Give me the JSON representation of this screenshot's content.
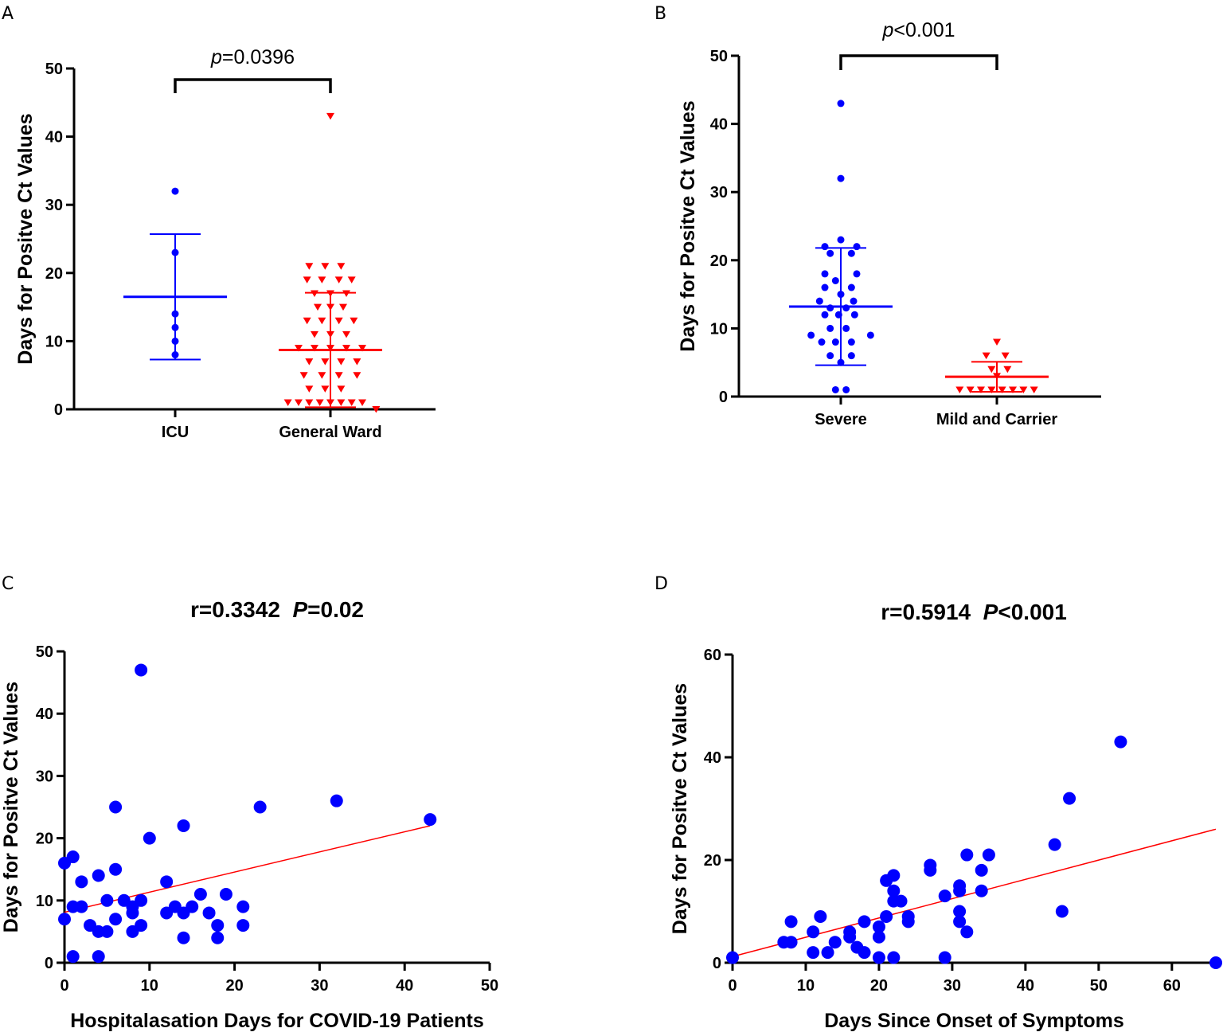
{
  "colors": {
    "blue": "#0000ff",
    "red": "#ff0000",
    "black": "#000000"
  },
  "chart_data": [
    {
      "panel": "A",
      "type": "scatter",
      "subtype": "dot-plot-with-mean-sd",
      "ylabel": "Days for Positve Ct Values",
      "ylim": [
        0,
        50
      ],
      "yticks": [
        0,
        10,
        20,
        30,
        40,
        50
      ],
      "categories": [
        "ICU",
        "General Ward"
      ],
      "series": [
        {
          "name": "ICU",
          "color": "#0000ff",
          "marker": "circle",
          "points": [
            [
              0,
              32
            ],
            [
              0,
              23
            ],
            [
              0,
              14
            ],
            [
              0,
              12
            ],
            [
              0,
              10
            ],
            [
              0,
              8
            ]
          ],
          "mean": 16.5,
          "sd_low": 7.3,
          "sd_high": 25.7
        },
        {
          "name": "General Ward",
          "color": "#ff0000",
          "marker": "triangle-down",
          "points": [
            [
              0,
              43
            ],
            [
              -0.2,
              21
            ],
            [
              -0.05,
              21
            ],
            [
              0.1,
              21
            ],
            [
              -0.22,
              19
            ],
            [
              -0.08,
              19
            ],
            [
              0.08,
              19
            ],
            [
              0.2,
              19
            ],
            [
              -0.15,
              17
            ],
            [
              0,
              17
            ],
            [
              0.15,
              17
            ],
            [
              -0.12,
              15
            ],
            [
              0,
              15
            ],
            [
              0.12,
              15
            ],
            [
              -0.22,
              13
            ],
            [
              -0.08,
              13
            ],
            [
              0.08,
              13
            ],
            [
              0.22,
              13
            ],
            [
              -0.15,
              11
            ],
            [
              0,
              11
            ],
            [
              0.15,
              11
            ],
            [
              -0.3,
              9
            ],
            [
              -0.15,
              9
            ],
            [
              0,
              9
            ],
            [
              0.15,
              9
            ],
            [
              0.3,
              9
            ],
            [
              -0.2,
              7
            ],
            [
              -0.05,
              7
            ],
            [
              0.1,
              7
            ],
            [
              0.25,
              7
            ],
            [
              -0.25,
              5
            ],
            [
              -0.08,
              5
            ],
            [
              0.08,
              5
            ],
            [
              0.25,
              5
            ],
            [
              -0.2,
              3
            ],
            [
              -0.05,
              3
            ],
            [
              0.1,
              3
            ],
            [
              -0.4,
              1
            ],
            [
              -0.3,
              1
            ],
            [
              -0.2,
              1
            ],
            [
              -0.1,
              1
            ],
            [
              0,
              1
            ],
            [
              0.1,
              1
            ],
            [
              0.2,
              1
            ],
            [
              0.3,
              1
            ],
            [
              0.43,
              0
            ]
          ],
          "mean": 8.7,
          "sd_low": 0.3,
          "sd_high": 17.1
        }
      ],
      "annotation": {
        "p_italic": "p",
        "p_rest": "=0.0396"
      }
    },
    {
      "panel": "B",
      "type": "scatter",
      "subtype": "dot-plot-with-mean-sd",
      "ylabel": "Days for Positve Ct Values",
      "ylim": [
        0,
        50
      ],
      "yticks": [
        0,
        10,
        20,
        30,
        40,
        50
      ],
      "categories": [
        "Severe",
        "Mild and Carrier"
      ],
      "series": [
        {
          "name": "Severe",
          "color": "#0000ff",
          "marker": "circle",
          "points": [
            [
              0,
              43
            ],
            [
              0,
              32
            ],
            [
              0,
              23
            ],
            [
              -0.15,
              22
            ],
            [
              0.15,
              22
            ],
            [
              -0.1,
              21
            ],
            [
              0.1,
              21
            ],
            [
              -0.15,
              18
            ],
            [
              0.15,
              18
            ],
            [
              -0.05,
              17
            ],
            [
              -0.15,
              16
            ],
            [
              0.1,
              16
            ],
            [
              0,
              15
            ],
            [
              -0.2,
              14
            ],
            [
              0.12,
              14
            ],
            [
              -0.1,
              13
            ],
            [
              0.05,
              13
            ],
            [
              -0.15,
              12
            ],
            [
              -0.02,
              12
            ],
            [
              0.13,
              12
            ],
            [
              -0.1,
              10
            ],
            [
              0.05,
              10
            ],
            [
              -0.28,
              9
            ],
            [
              0.28,
              9
            ],
            [
              -0.18,
              8
            ],
            [
              -0.05,
              8
            ],
            [
              0.1,
              8
            ],
            [
              -0.1,
              6
            ],
            [
              0.1,
              6
            ],
            [
              0,
              5
            ],
            [
              -0.05,
              1
            ],
            [
              0.05,
              1
            ]
          ],
          "mean": 13.2,
          "sd_low": 4.6,
          "sd_high": 21.8
        },
        {
          "name": "Mild and Carrier",
          "color": "#ff0000",
          "marker": "triangle-down",
          "points": [
            [
              0,
              8
            ],
            [
              -0.1,
              6
            ],
            [
              0.08,
              6
            ],
            [
              -0.05,
              4
            ],
            [
              0.1,
              4
            ],
            [
              0,
              3
            ],
            [
              -0.35,
              1
            ],
            [
              -0.25,
              1
            ],
            [
              -0.15,
              1
            ],
            [
              -0.05,
              1
            ],
            [
              0.05,
              1
            ],
            [
              0.15,
              1
            ],
            [
              0.25,
              1
            ],
            [
              0.35,
              1
            ]
          ],
          "mean": 2.9,
          "sd_low": 0.7,
          "sd_high": 5.1
        }
      ],
      "annotation": {
        "p_italic": "p",
        "p_rest": "<0.001"
      }
    },
    {
      "panel": "C",
      "type": "scatter",
      "title_prefix": "r=0.3342  ",
      "title_italic": "P",
      "title_rest": "=0.02",
      "xlabel": "Hospitalasation Days for COVID-19 Patients",
      "ylabel": "Days for Positve Ct Values",
      "xlim": [
        0,
        50
      ],
      "ylim": [
        0,
        50
      ],
      "xticks": [
        0,
        10,
        20,
        30,
        40,
        50
      ],
      "yticks": [
        0,
        10,
        20,
        30,
        40,
        50
      ],
      "color": "#0000ff",
      "points": [
        [
          0,
          16
        ],
        [
          0,
          7
        ],
        [
          1,
          17
        ],
        [
          1,
          9
        ],
        [
          1,
          1
        ],
        [
          2,
          13
        ],
        [
          2,
          9
        ],
        [
          3,
          6
        ],
        [
          4,
          14
        ],
        [
          4,
          5
        ],
        [
          4,
          1
        ],
        [
          5,
          10
        ],
        [
          5,
          5
        ],
        [
          6,
          25
        ],
        [
          6,
          15
        ],
        [
          6,
          7
        ],
        [
          7,
          10
        ],
        [
          8,
          8
        ],
        [
          8,
          5
        ],
        [
          8,
          9
        ],
        [
          9,
          47
        ],
        [
          9,
          10
        ],
        [
          9,
          6
        ],
        [
          10,
          20
        ],
        [
          12,
          13
        ],
        [
          12,
          8
        ],
        [
          13,
          9
        ],
        [
          14,
          22
        ],
        [
          14,
          8
        ],
        [
          14,
          4
        ],
        [
          15,
          9
        ],
        [
          16,
          11
        ],
        [
          17,
          8
        ],
        [
          18,
          6
        ],
        [
          18,
          4
        ],
        [
          19,
          11
        ],
        [
          21,
          9
        ],
        [
          21,
          6
        ],
        [
          23,
          25
        ],
        [
          32,
          26
        ],
        [
          43,
          23
        ]
      ],
      "fit_line": {
        "x": [
          0,
          43
        ],
        "y": [
          8.1,
          22
        ],
        "color": "#ff0000"
      }
    },
    {
      "panel": "D",
      "type": "scatter",
      "title_prefix": "r=0.5914  ",
      "title_italic": "P",
      "title_rest": "<0.001",
      "xlabel": "Days Since Onset of Symptoms",
      "ylabel": "Days for Positve Ct Values",
      "xlim": [
        0,
        66
      ],
      "ylim": [
        0,
        60
      ],
      "xticks": [
        0,
        10,
        20,
        30,
        40,
        50,
        60
      ],
      "yticks": [
        0,
        20,
        40,
        60
      ],
      "color": "#0000ff",
      "points": [
        [
          0,
          1
        ],
        [
          7,
          4
        ],
        [
          8,
          8
        ],
        [
          8,
          4
        ],
        [
          11,
          6
        ],
        [
          11,
          2
        ],
        [
          12,
          9
        ],
        [
          13,
          2
        ],
        [
          14,
          4
        ],
        [
          16,
          6
        ],
        [
          16,
          5
        ],
        [
          17,
          3
        ],
        [
          18,
          8
        ],
        [
          18,
          2
        ],
        [
          20,
          7
        ],
        [
          20,
          5
        ],
        [
          20,
          1
        ],
        [
          21,
          16
        ],
        [
          21,
          9
        ],
        [
          22,
          17
        ],
        [
          22,
          14
        ],
        [
          22,
          12
        ],
        [
          22,
          1
        ],
        [
          23,
          12
        ],
        [
          24,
          9
        ],
        [
          24,
          8
        ],
        [
          27,
          19
        ],
        [
          27,
          18
        ],
        [
          29,
          13
        ],
        [
          29,
          1
        ],
        [
          31,
          15
        ],
        [
          31,
          14
        ],
        [
          31,
          10
        ],
        [
          31,
          8
        ],
        [
          32,
          21
        ],
        [
          32,
          6
        ],
        [
          34,
          18
        ],
        [
          34,
          14
        ],
        [
          35,
          21
        ],
        [
          44,
          23
        ],
        [
          45,
          10
        ],
        [
          46,
          32
        ],
        [
          53,
          43
        ],
        [
          66,
          0
        ]
      ],
      "fit_line": {
        "x": [
          0,
          66
        ],
        "y": [
          1.2,
          26
        ],
        "color": "#ff0000"
      }
    }
  ]
}
